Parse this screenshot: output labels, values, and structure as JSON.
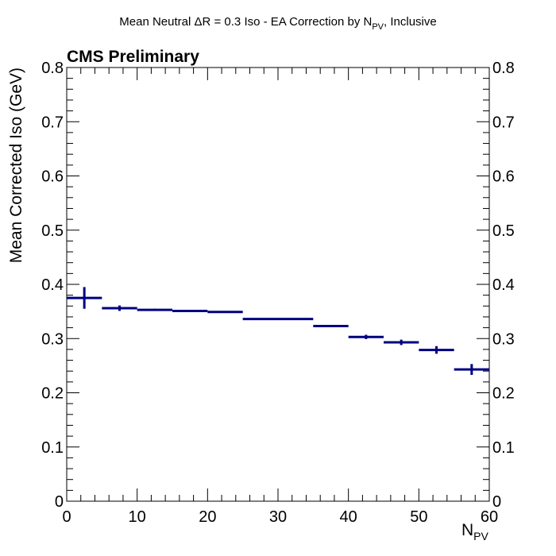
{
  "chart_data": {
    "type": "scatter",
    "title": "Mean Neutral ΔR = 0.3 Iso - EA Correction by N",
    "title_sub": "PV",
    "title_suffix": ", Inclusive",
    "annotation": "CMS Preliminary",
    "xlabel": "N",
    "xlabel_sub": "PV",
    "ylabel": "Mean Corrected Iso (GeV)",
    "xlim": [
      0,
      60
    ],
    "ylim": [
      0,
      0.8
    ],
    "x_ticks": [
      "0",
      "10",
      "20",
      "30",
      "40",
      "50",
      "60"
    ],
    "y_ticks": [
      "0",
      "0.1",
      "0.2",
      "0.3",
      "0.4",
      "0.5",
      "0.6",
      "0.7",
      "0.8"
    ],
    "grid": false,
    "marker_color": "#000080",
    "points": [
      {
        "x_low": 0,
        "x_high": 5,
        "x": 2.5,
        "y": 0.375,
        "y_err": 0.02
      },
      {
        "x_low": 5,
        "x_high": 10,
        "x": 7.5,
        "y": 0.356,
        "y_err": 0.005
      },
      {
        "x_low": 10,
        "x_high": 15,
        "x": 12.5,
        "y": 0.353,
        "y_err": 0.002
      },
      {
        "x_low": 15,
        "x_high": 20,
        "x": 17.5,
        "y": 0.351,
        "y_err": 0.002
      },
      {
        "x_low": 20,
        "x_high": 25,
        "x": 22.5,
        "y": 0.349,
        "y_err": 0.001
      },
      {
        "x_low": 25,
        "x_high": 35,
        "x": 30,
        "y": 0.336,
        "y_err": 0.001
      },
      {
        "x_low": 35,
        "x_high": 40,
        "x": 37.5,
        "y": 0.323,
        "y_err": 0.002
      },
      {
        "x_low": 40,
        "x_high": 45,
        "x": 42.5,
        "y": 0.303,
        "y_err": 0.004
      },
      {
        "x_low": 45,
        "x_high": 50,
        "x": 47.5,
        "y": 0.293,
        "y_err": 0.005
      },
      {
        "x_low": 50,
        "x_high": 55,
        "x": 52.5,
        "y": 0.279,
        "y_err": 0.007
      },
      {
        "x_low": 55,
        "x_high": 60,
        "x": 57.5,
        "y": 0.243,
        "y_err": 0.01
      }
    ]
  }
}
